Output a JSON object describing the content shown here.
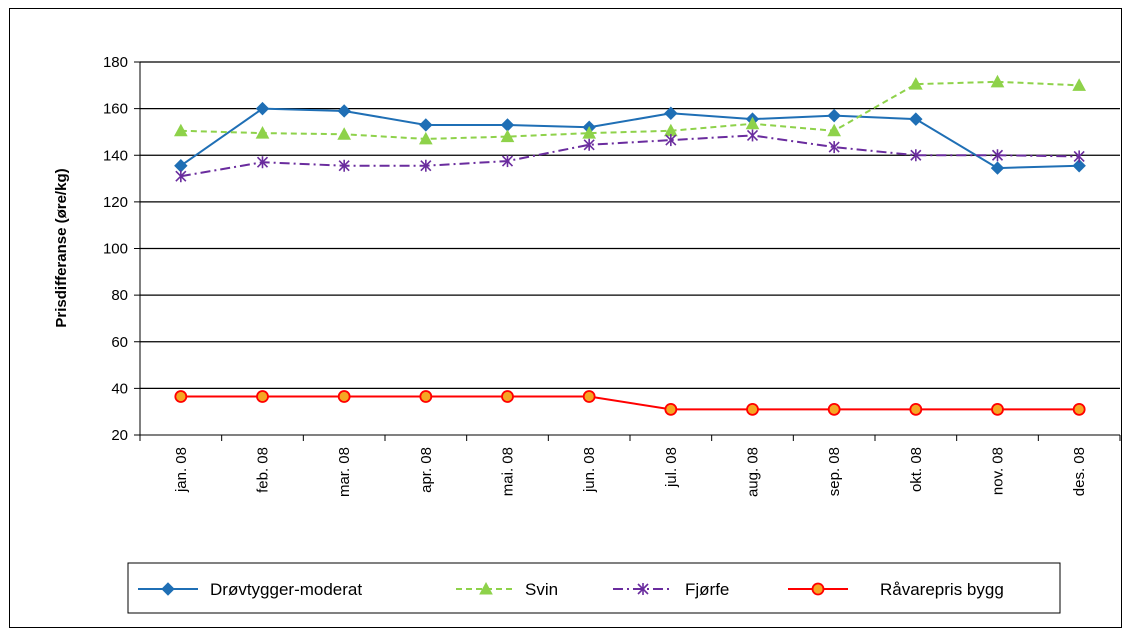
{
  "chart_data": {
    "type": "line",
    "ylabel": "Prisdifferanse (øre/kg)",
    "ylim": [
      20,
      180
    ],
    "yticks": [
      20,
      40,
      60,
      80,
      100,
      120,
      140,
      160,
      180
    ],
    "grid": true,
    "legend_position": "bottom",
    "categories": [
      "jan. 08",
      "feb. 08",
      "mar. 08",
      "apr. 08",
      "mai. 08",
      "jun. 08",
      "jul. 08",
      "aug. 08",
      "sep. 08",
      "okt. 08",
      "nov. 08",
      "des. 08"
    ],
    "series": [
      {
        "name": "Drøvtygger-moderat",
        "color": "#1f6fb5",
        "dash": "",
        "marker": "diamond",
        "values": [
          135.5,
          160,
          159,
          153,
          153,
          152,
          158,
          155.5,
          157,
          155.5,
          134.5,
          135.5
        ]
      },
      {
        "name": "Svin",
        "color": "#8ed24a",
        "dash": "6,4",
        "marker": "triangle",
        "values": [
          150.5,
          149.5,
          149,
          147,
          148,
          149.5,
          150.5,
          153.5,
          150.5,
          170.5,
          171.5,
          170
        ]
      },
      {
        "name": "Fjørfe",
        "color": "#6a2c9e",
        "dash": "10,4,2,4",
        "marker": "star",
        "values": [
          131,
          137,
          135.5,
          135.5,
          137.5,
          144.5,
          146.5,
          148.5,
          143.5,
          140,
          140,
          139.5
        ]
      },
      {
        "name": "Råvarepris bygg",
        "color": "#ff0000",
        "dash": "",
        "marker": "circle",
        "values": [
          36.5,
          36.5,
          36.5,
          36.5,
          36.5,
          36.5,
          31,
          31,
          31,
          31,
          31,
          31
        ]
      }
    ]
  }
}
